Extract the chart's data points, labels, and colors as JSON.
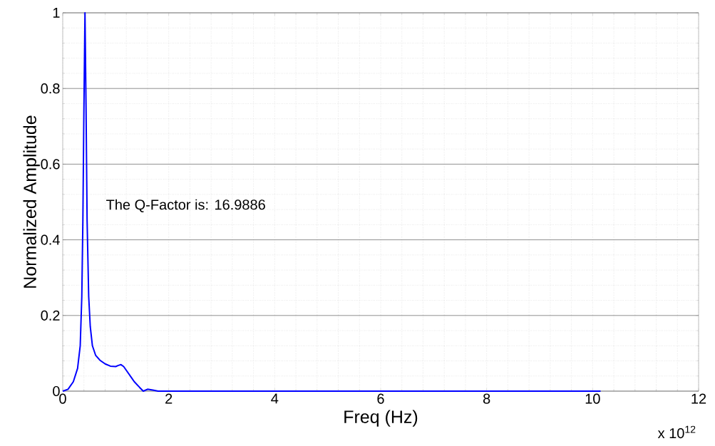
{
  "chart_data": {
    "type": "line",
    "xlabel": "Freq (Hz)",
    "ylabel": "Normalized Amplitude",
    "annotations": [
      "The Q-Factor is:  16.9886",
      "x 10$^{12}$"
    ],
    "x": [
      0,
      0.1,
      0.2,
      0.28,
      0.33,
      0.36,
      0.38,
      0.4,
      0.42,
      0.44,
      0.46,
      0.49,
      0.52,
      0.56,
      0.62,
      0.7,
      0.8,
      0.9,
      1.0,
      1.05,
      1.1,
      1.15,
      1.2,
      1.3,
      1.35,
      1.45,
      1.52,
      1.6,
      1.7,
      1.8,
      2.0,
      10.15
    ],
    "series": [
      {
        "color": "#0000ff",
        "values": [
          0,
          0.005,
          0.025,
          0.06,
          0.12,
          0.25,
          0.45,
          0.75,
          1.0,
          0.75,
          0.45,
          0.25,
          0.17,
          0.12,
          0.095,
          0.082,
          0.072,
          0.066,
          0.065,
          0.068,
          0.07,
          0.065,
          0.055,
          0.035,
          0.025,
          0.01,
          0.0,
          0.005,
          0.003,
          0.0,
          0,
          0
        ]
      }
    ],
    "xlim": [
      0,
      12
    ],
    "xticks": [
      0,
      2,
      4,
      6,
      8,
      10,
      12
    ],
    "ylim": [
      0,
      1
    ],
    "yticks": [
      0,
      0.2,
      0.4,
      0.6,
      0.8,
      1
    ],
    "grid": true,
    "marker": "none",
    "line_style": "solid"
  }
}
